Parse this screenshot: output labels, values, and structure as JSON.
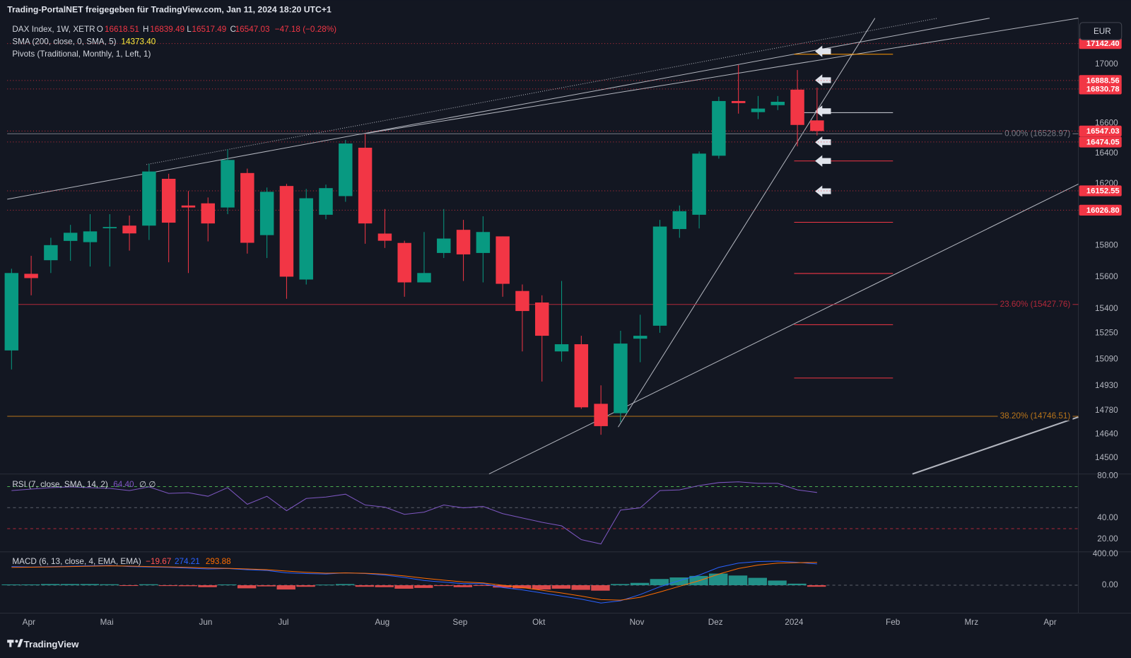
{
  "header": {
    "title": "Trading-PortalNET freigegeben für TradingView.com, Jan 11, 2024 18:20 UTC+1",
    "currency": "EUR"
  },
  "legend": {
    "symbol": "DAX Index, 1W, XETR",
    "o": "O",
    "h": "H",
    "l": "L",
    "c": "C",
    "change": "−47.18 (−0.28%)",
    "sma_title": "SMA (200, close, 0, SMA, 5)",
    "sma_value": "14373.40",
    "pivots": "Pivots (Traditional, Monthly, 1, Left, 1)"
  },
  "chart_data": [
    {
      "type": "candlestick",
      "up_color": "#089981",
      "down_color": "#f23645",
      "log_scale": true,
      "open": [
        15144,
        15620,
        15706,
        15829,
        15821,
        15910,
        15927,
        15927,
        16231,
        16057,
        16071,
        16044,
        16269,
        15866,
        16184,
        15584,
        15997,
        16118,
        16436,
        15876,
        15816,
        15566,
        15752,
        15900,
        15752,
        15858,
        15512,
        15440,
        15138,
        15182,
        14821,
        14765,
        15216,
        15296,
        15905,
        15997,
        16383,
        16749,
        16674,
        16721,
        16826,
        16618.51
      ],
      "high": [
        15652,
        15734,
        15849,
        15932,
        16001,
        16001,
        15992,
        16330,
        16264,
        16151,
        16109,
        16426,
        16298,
        16174,
        16198,
        16165,
        16193,
        16488,
        16527,
        16034,
        15830,
        15886,
        16034,
        15964,
        15987,
        15858,
        15553,
        15485,
        15575,
        15234,
        14932,
        15265,
        15364,
        15964,
        16057,
        16411,
        16778,
        16995,
        16783,
        16783,
        16960,
        16839.49
      ],
      "low": [
        15028,
        15485,
        15625,
        15702,
        15666,
        15666,
        15767,
        15835,
        15693,
        15625,
        15826,
        16001,
        15748,
        15720,
        15463,
        15553,
        15968,
        16081,
        15811,
        15784,
        15476,
        15566,
        15720,
        15575,
        15566,
        15476,
        15138,
        14955,
        15076,
        14791,
        14637,
        14713,
        15072,
        15252,
        15849,
        15909,
        16364,
        16664,
        16627,
        16688,
        16445,
        16517.49
      ],
      "close": [
        15625,
        15593,
        15802,
        15881,
        15890,
        15918,
        15877,
        16279,
        15946,
        16044,
        15941,
        16355,
        15817,
        16146,
        15602,
        16104,
        16170,
        16464,
        15941,
        15830,
        15566,
        15625,
        15844,
        15743,
        15886,
        15557,
        15387,
        15234,
        15182,
        14800,
        14688,
        15186,
        15234,
        15921,
        16020,
        16397,
        16749,
        16735,
        16698,
        16744,
        16588,
        16547.03
      ],
      "ylim": [
        14407,
        17319
      ],
      "yticks": [
        17000,
        16600,
        16400,
        16200,
        15800,
        15600,
        15400,
        15250,
        15090,
        14930,
        14780,
        14640,
        14500
      ],
      "xlim": [
        -0.22,
        54.3
      ],
      "xticks": [
        {
          "value": 0.88,
          "label": "Apr"
        },
        {
          "value": 4.85,
          "label": "Mai"
        },
        {
          "value": 9.88,
          "label": "Jun"
        },
        {
          "value": 13.84,
          "label": "Jul"
        },
        {
          "value": 18.87,
          "label": "Aug"
        },
        {
          "value": 22.83,
          "label": "Sep"
        },
        {
          "value": 26.84,
          "label": "Okt"
        },
        {
          "value": 31.83,
          "label": "Nov"
        },
        {
          "value": 35.83,
          "label": "Dez"
        },
        {
          "value": 39.83,
          "label": "2024"
        },
        {
          "value": 44.86,
          "label": "Feb"
        },
        {
          "value": 48.86,
          "label": "Mrz"
        },
        {
          "value": 52.86,
          "label": "Apr"
        }
      ],
      "price_labels": [
        {
          "value": 17142.4,
          "label": "17142.40"
        },
        {
          "value": 16888.56,
          "label": "16888.56"
        },
        {
          "value": 16830.78,
          "label": "16830.78"
        },
        {
          "value": 16547.03,
          "label": "16547.03"
        },
        {
          "value": 16474.05,
          "label": "16474.05"
        },
        {
          "value": 16152.55,
          "label": "16152.55"
        },
        {
          "value": 16026.8,
          "label": "16026.80"
        }
      ],
      "label_color": "#f23645",
      "fib_levels": [
        {
          "value": 16528.97,
          "label": "0.00% (16528.97)",
          "color": "#787b86"
        },
        {
          "value": 15427.76,
          "label": "23.60% (15427.76)",
          "color": "#b2283a"
        },
        {
          "value": 14746.51,
          "label": "38.20% (14746.51)",
          "color": "#b8741a"
        }
      ]
    },
    {
      "type": "line",
      "title": "RSI (7, close, SMA, 14, 2)",
      "color": "#7e57c2",
      "legend_value": "64.40",
      "legend_extra": "∅ ∅",
      "values": [
        66.2,
        67.6,
        69.0,
        69.7,
        69.0,
        68.3,
        66.2,
        69.7,
        63.5,
        64.2,
        60.8,
        69.0,
        53.2,
        60.8,
        47.1,
        58.7,
        60.1,
        62.8,
        52.5,
        50.5,
        43.6,
        45.7,
        52.5,
        49.8,
        51.2,
        44.3,
        40.2,
        36.1,
        32.7,
        19.6,
        15.5,
        47.7,
        49.8,
        66.2,
        66.9,
        71.0,
        73.8,
        74.5,
        73.1,
        73.1,
        66.9,
        64.4
      ],
      "ylim": [
        8,
        82
      ],
      "yticks": [
        {
          "value": 80,
          "label": "80.00"
        },
        {
          "value": 40,
          "label": "40.00"
        },
        {
          "value": 20,
          "label": "20.00"
        }
      ],
      "levels": [
        {
          "value": 70,
          "color": "#4caf50"
        },
        {
          "value": 50,
          "color": "#5d606b"
        },
        {
          "value": 30,
          "color": "#b2283a"
        }
      ]
    },
    {
      "type": "macd",
      "title": "MACD (6, 13, close, 4, EMA, EMA)",
      "hist_label": "−19.67",
      "histogram": [
        10,
        10,
        15,
        15,
        15,
        12,
        -8,
        12,
        -10,
        -12,
        -25,
        10,
        -40,
        -15,
        -55,
        -20,
        8,
        15,
        -20,
        -25,
        -45,
        -35,
        -10,
        -25,
        -5,
        -30,
        -40,
        -55,
        -45,
        -60,
        -70,
        15,
        30,
        80,
        100,
        120,
        150,
        125,
        95,
        60,
        20,
        -19.67
      ],
      "macd": [
        240,
        235,
        240,
        245,
        250,
        255,
        240,
        235,
        230,
        220,
        210,
        215,
        200,
        190,
        160,
        150,
        145,
        160,
        150,
        130,
        100,
        60,
        40,
        20,
        20,
        -30,
        -60,
        -100,
        -140,
        -180,
        -230,
        -200,
        -120,
        -20,
        60,
        130,
        230,
        285,
        305,
        310,
        295,
        274.21
      ],
      "signal": [
        230,
        232,
        236,
        240,
        245,
        250,
        246,
        240,
        236,
        230,
        222,
        218,
        210,
        200,
        182,
        166,
        155,
        158,
        154,
        142,
        120,
        90,
        65,
        42,
        30,
        0,
        -30,
        -65,
        -100,
        -140,
        -185,
        -192,
        -156,
        -88,
        -14,
        58,
        144,
        215,
        260,
        285,
        290,
        293.88
      ],
      "positive_color": "#26a69a",
      "negative_color": "#ff5252",
      "macd_color": "#2962ff",
      "signal_color": "#ff6d00",
      "ylim": [
        -360,
        430
      ],
      "yticks": [
        {
          "value": 400,
          "label": "400.00"
        },
        {
          "value": 0,
          "label": "0.00"
        }
      ]
    }
  ],
  "footer": {
    "brand": "TradingView"
  }
}
